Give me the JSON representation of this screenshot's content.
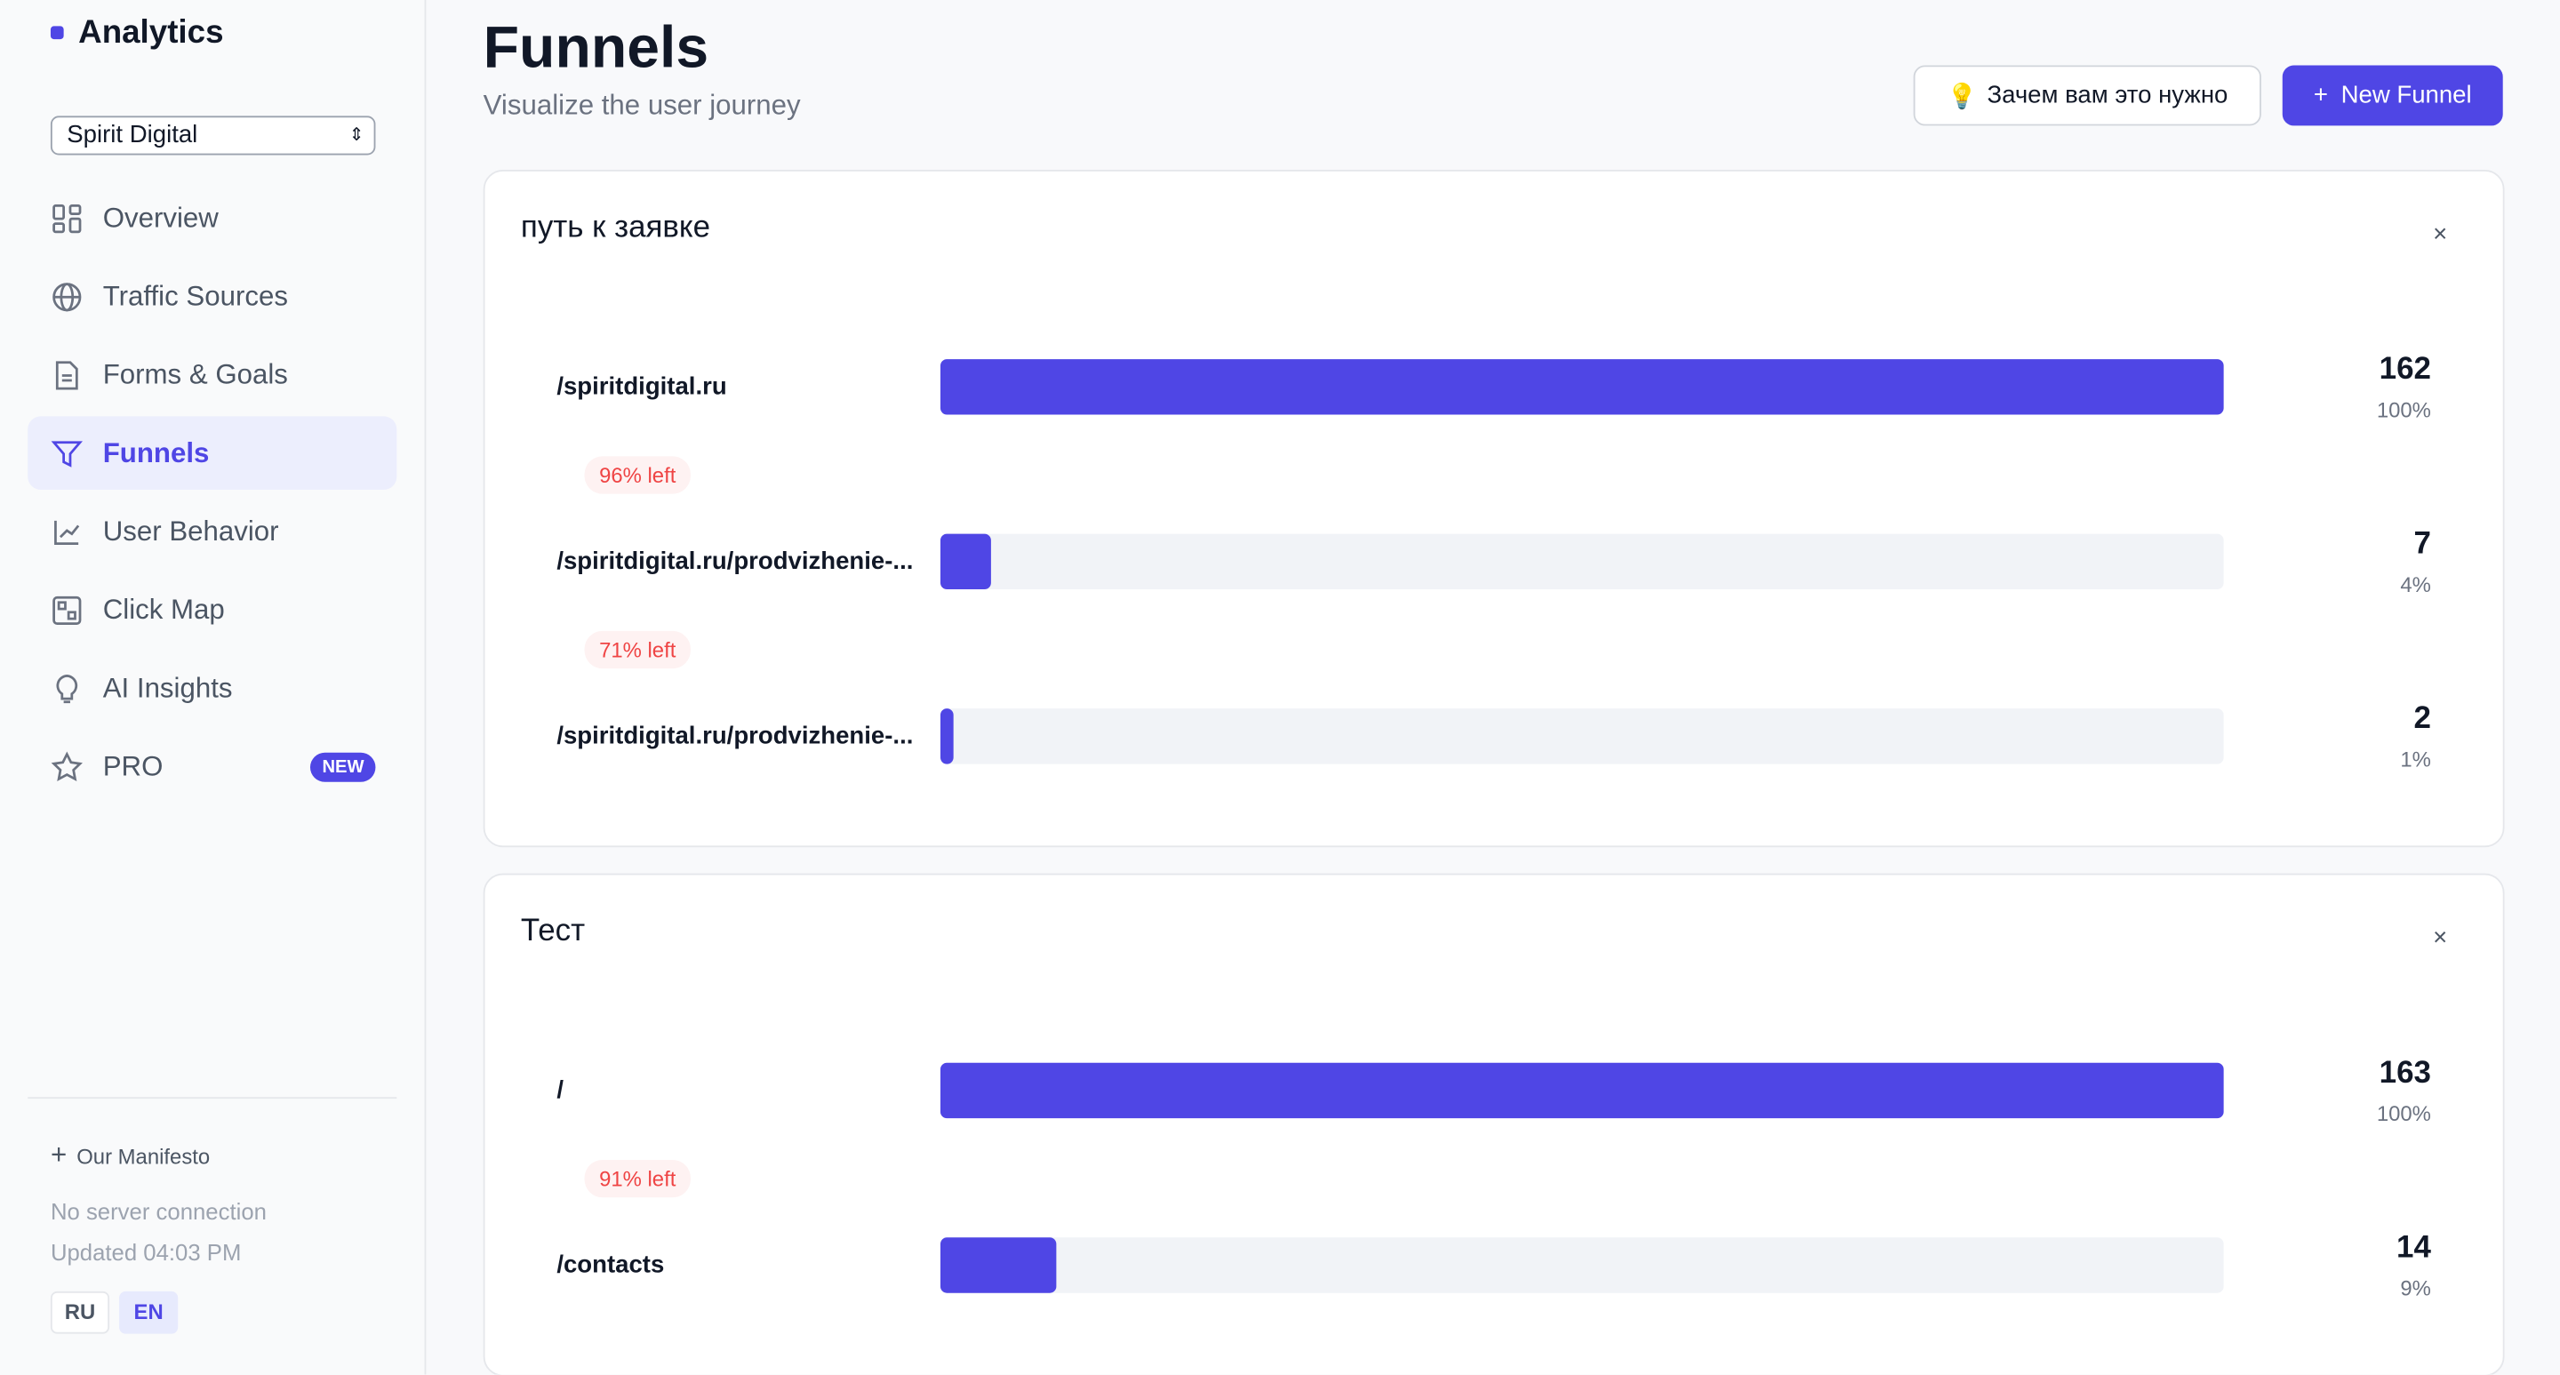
{
  "sidebar": {
    "logo": "Analytics",
    "project": "Spirit Digital",
    "nav": [
      "Overview",
      "Traffic Sources",
      "Forms & Goals",
      "Funnels",
      "User Behavior",
      "Click Map",
      "AI Insights",
      "PRO"
    ],
    "active": 3,
    "pro_badge": "NEW",
    "manifesto": "Our Manifesto",
    "status": "No server connection",
    "updated": "Updated 04:03 PM",
    "languages": [
      "RU",
      "EN"
    ],
    "active_language": 1
  },
  "header": {
    "title": "Funnels",
    "subtitle": "Visualize the user journey",
    "why_button": "Зачем вам это нужно",
    "new_button": "New Funnel"
  },
  "funnels": [
    {
      "name": "путь к заявке",
      "steps": [
        {
          "path": "/spiritdigital.ru",
          "count": 162,
          "share": 100,
          "share_label": "100%"
        },
        {
          "path": "/spiritdigital.ru/prodvizhenie-...",
          "count": 7,
          "share": 4,
          "share_label": "4%",
          "drop_label": "96% left"
        },
        {
          "path": "/spiritdigital.ru/prodvizhenie-...",
          "count": 2,
          "share": 1,
          "share_label": "1%",
          "drop_label": "71% left"
        }
      ]
    },
    {
      "name": "Тест",
      "steps": [
        {
          "path": "/",
          "count": 163,
          "share": 100,
          "share_label": "100%"
        },
        {
          "path": "/contacts",
          "count": 14,
          "share": 9,
          "share_label": "9%",
          "drop_label": "91% left"
        }
      ]
    }
  ]
}
